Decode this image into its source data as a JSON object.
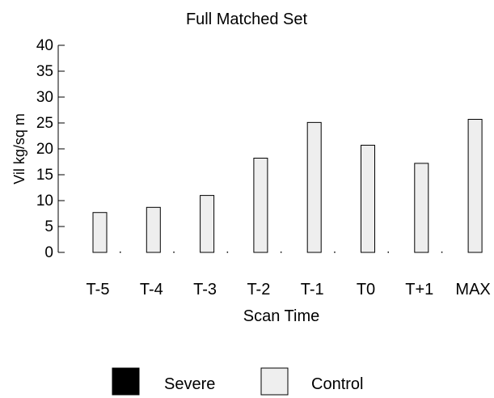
{
  "chart_data": {
    "type": "bar",
    "title": "Full Matched Set",
    "xlabel": "Scan Time",
    "ylabel": "Vil  kg/sq m",
    "ylim": [
      0,
      40
    ],
    "yticks": [
      0,
      5,
      10,
      15,
      20,
      25,
      30,
      35,
      40
    ],
    "categories": [
      "T-5",
      "T-4",
      "T-3",
      "T-2",
      "T-1",
      "T0",
      "T+1",
      "MAX"
    ],
    "series": [
      {
        "name": "Severe",
        "color": "#000000",
        "values": [
          0,
          0,
          0,
          0,
          0,
          0,
          0,
          0
        ]
      },
      {
        "name": "Control",
        "color": "#eeeeee",
        "values": [
          7.7,
          8.7,
          11,
          18.2,
          25.1,
          20.7,
          17.2,
          25.7
        ]
      }
    ],
    "legend": "bottom"
  }
}
